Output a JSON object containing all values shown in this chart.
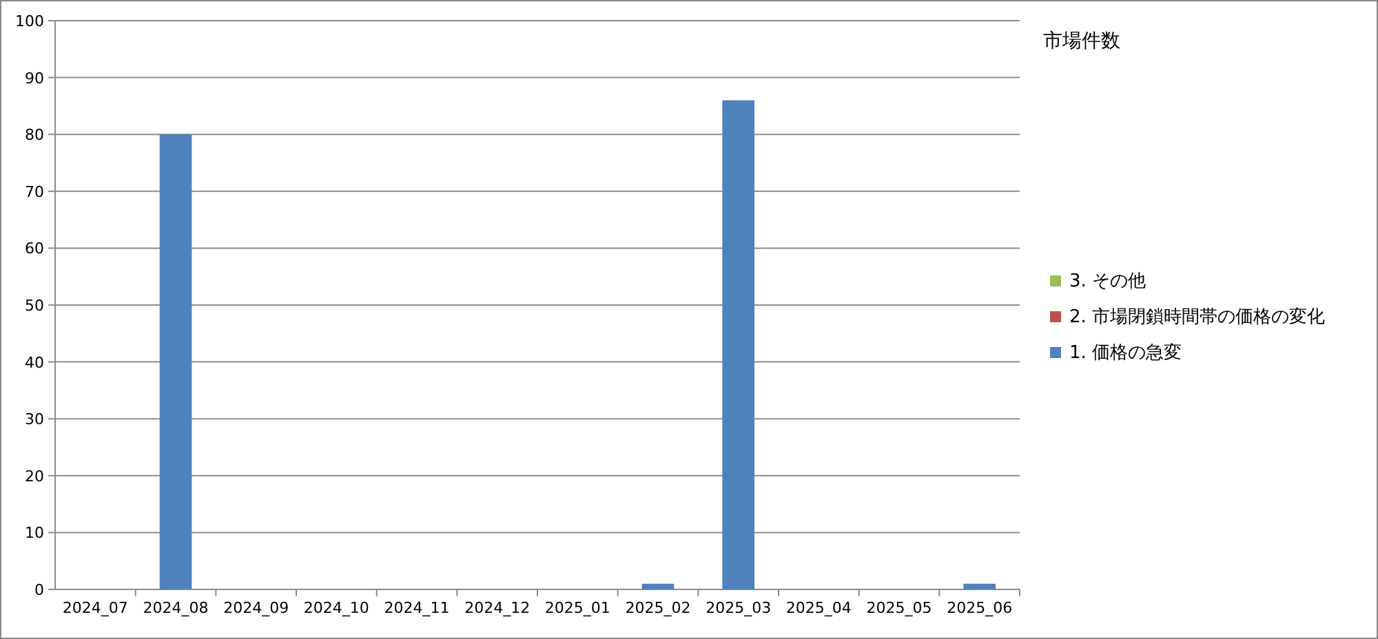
{
  "chart_data": {
    "type": "bar",
    "title": "市場件数",
    "stacked": true,
    "categories": [
      "2024_07",
      "2024_08",
      "2024_09",
      "2024_10",
      "2024_11",
      "2024_12",
      "2025_01",
      "2025_02",
      "2025_03",
      "2025_04",
      "2025_05",
      "2025_06"
    ],
    "series": [
      {
        "name": "1. 価格の急変",
        "color": "#4f81bd",
        "values": [
          0,
          80,
          0,
          0,
          0,
          0,
          0,
          1,
          86,
          0,
          0,
          1
        ]
      },
      {
        "name": "2. 市場閉鎖時間帯の価格の変化",
        "color": "#c0504d",
        "values": [
          0,
          0,
          0,
          0,
          0,
          0,
          0,
          0,
          0,
          0,
          0,
          0
        ]
      },
      {
        "name": "3. その他",
        "color": "#9bbb59",
        "values": [
          0,
          0,
          0,
          0,
          0,
          0,
          0,
          0,
          0,
          0,
          0,
          0
        ]
      }
    ],
    "ylim": [
      0,
      100
    ],
    "yticks": [
      0,
      10,
      20,
      30,
      40,
      50,
      60,
      70,
      80,
      90,
      100
    ],
    "grid": "y",
    "legend": "right"
  }
}
